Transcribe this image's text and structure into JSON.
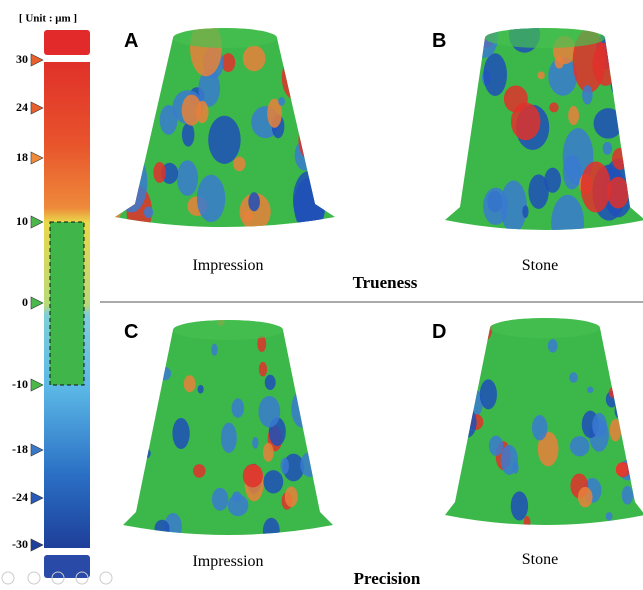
{
  "legend": {
    "unit": "[ Unit : μm ]",
    "ticks": [
      "30",
      "24",
      "18",
      "10",
      "0",
      "-10",
      "-18",
      "-24",
      "-30"
    ]
  },
  "panels": [
    {
      "letter": "A",
      "caption": "Impression"
    },
    {
      "letter": "B",
      "caption": "Stone"
    },
    {
      "letter": "C",
      "caption": "Impression"
    },
    {
      "letter": "D",
      "caption": "Stone"
    }
  ],
  "rows": [
    {
      "label": "Trueness"
    },
    {
      "label": "Precision"
    }
  ]
}
